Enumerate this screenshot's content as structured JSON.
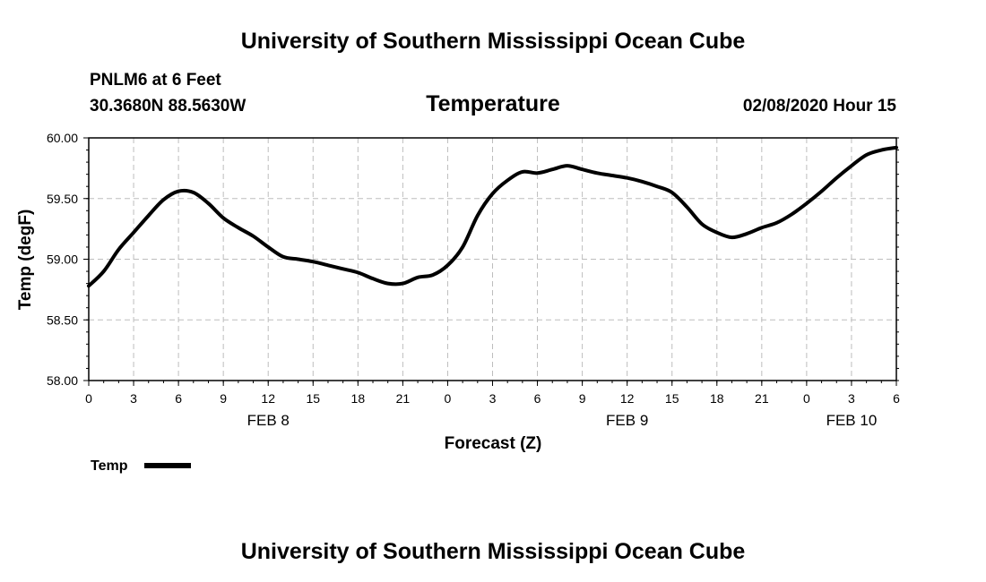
{
  "header": {
    "title": "University of Southern Mississippi Ocean Cube",
    "station": "PNLM6 at 6 Feet",
    "coords": "30.3680N 88.5630W",
    "datetime": "02/08/2020 Hour 15"
  },
  "footer": {
    "title": "University of Southern Mississippi Ocean Cube"
  },
  "chart_data": {
    "type": "line",
    "title": "Temperature",
    "xlabel": "Forecast (Z)",
    "ylabel": "Temp (degF)",
    "ylim": [
      58.0,
      60.0
    ],
    "xlim_hours": [
      0,
      54
    ],
    "grid": true,
    "legend_position": "bottom-left",
    "y_ticks": [
      "58.00",
      "58.50",
      "59.00",
      "59.50",
      "60.00"
    ],
    "x_ticks": [
      "0",
      "3",
      "6",
      "9",
      "12",
      "15",
      "18",
      "21",
      "0",
      "3",
      "6",
      "9",
      "12",
      "15",
      "18",
      "21",
      "0",
      "3",
      "6"
    ],
    "day_labels": [
      {
        "label": "FEB 8",
        "hour": 12
      },
      {
        "label": "FEB 9",
        "hour": 36
      },
      {
        "label": "FEB 10",
        "hour": 51
      }
    ],
    "series": [
      {
        "name": "Temp",
        "color": "#000000",
        "x": [
          0,
          1,
          2,
          3,
          4,
          5,
          6,
          7,
          8,
          9,
          10,
          11,
          12,
          13,
          14,
          15,
          16,
          17,
          18,
          19,
          20,
          21,
          22,
          23,
          24,
          25,
          26,
          27,
          28,
          29,
          30,
          31,
          32,
          33,
          34,
          35,
          36,
          37,
          38,
          39,
          40,
          41,
          42,
          43,
          44,
          45,
          46,
          47,
          48,
          49,
          50,
          51,
          52,
          53,
          54
        ],
        "y": [
          58.78,
          58.9,
          59.08,
          59.22,
          59.36,
          59.49,
          59.56,
          59.55,
          59.46,
          59.34,
          59.26,
          59.19,
          59.1,
          59.02,
          59.0,
          58.98,
          58.95,
          58.92,
          58.89,
          58.84,
          58.8,
          58.8,
          58.85,
          58.87,
          58.95,
          59.1,
          59.36,
          59.54,
          59.65,
          59.72,
          59.71,
          59.74,
          59.77,
          59.74,
          59.71,
          59.69,
          59.67,
          59.64,
          59.6,
          59.55,
          59.43,
          59.29,
          59.22,
          59.18,
          59.21,
          59.26,
          59.3,
          59.37,
          59.46,
          59.56,
          59.67,
          59.77,
          59.86,
          59.9,
          59.92
        ]
      }
    ]
  }
}
